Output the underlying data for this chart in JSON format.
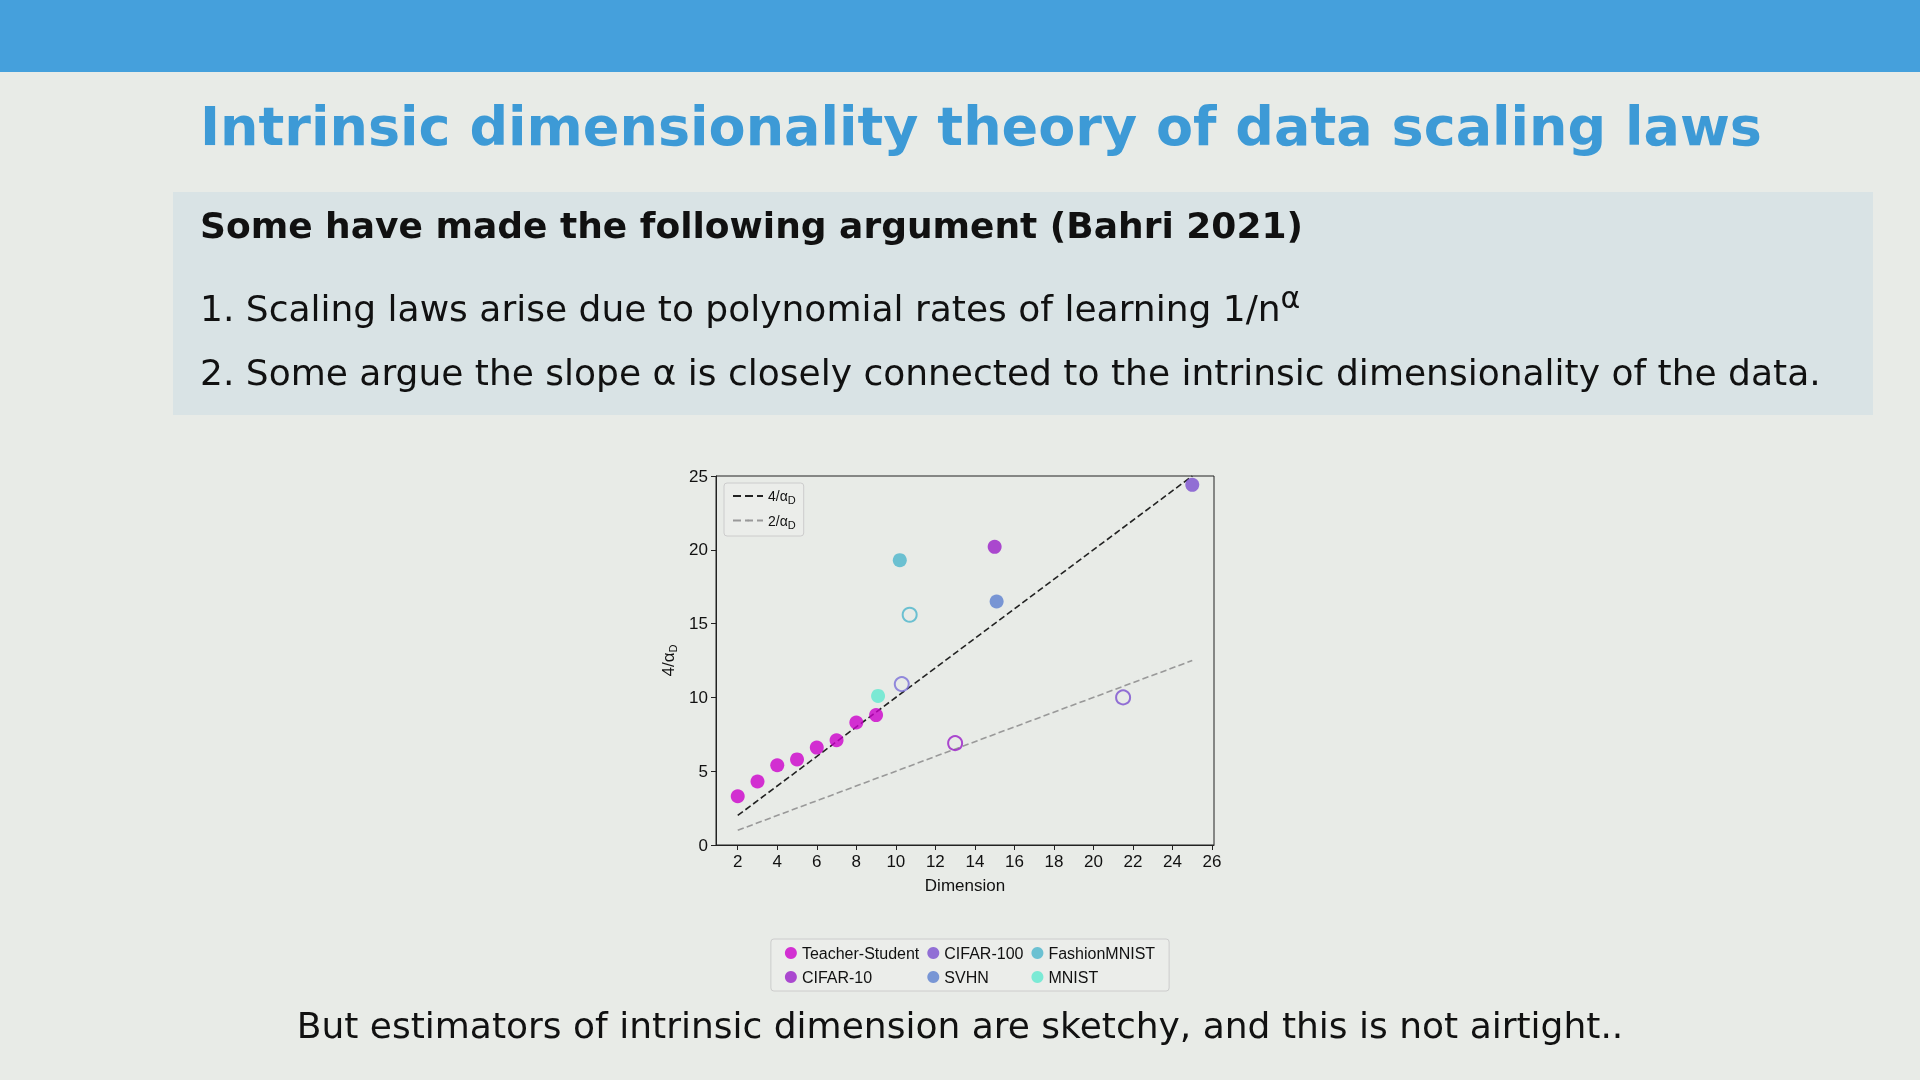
{
  "chart_data": {
    "type": "scatter",
    "title": "Intrinsic dimensionality theory of data scaling laws",
    "annotations": [
      "Some have made the following argument (Bahri 2021)",
      "1.   Scaling laws arise due to polynomial rates of learning 1/n$^{α}$",
      "2.   Some argue the slope α is closely connected to the intrinsic dimensionality of the data.",
      "But estimators of intrinsic dimension are sketchy, and this is not airtight.."
    ],
    "xlabel": "Dimension",
    "ylabel": "4/α$_{D}$",
    "xlim": [
      0.9,
      26.1
    ],
    "xticks": [
      2,
      4,
      6,
      8,
      10,
      12,
      14,
      16,
      18,
      20,
      22,
      24,
      26
    ],
    "ylim": [
      0,
      25
    ],
    "yticks": [
      0,
      5,
      10,
      15,
      20,
      25
    ],
    "grid": false,
    "legend": "bottom",
    "series": [
      {
        "name": "4/α$_{D}$",
        "type": "line",
        "line_style": "dashed",
        "color": "#222222",
        "x": [
          2,
          25
        ],
        "values": [
          2,
          25
        ]
      },
      {
        "name": "2/α$_{D}$",
        "type": "line",
        "line_style": "dashed",
        "color": "#999999",
        "x": [
          2,
          25
        ],
        "values": [
          1,
          12.5
        ]
      },
      {
        "name": "Teacher-Student",
        "marker": "circle",
        "color": "#cc00cc",
        "x": [
          2,
          3,
          4,
          5,
          6,
          7,
          8,
          9
        ],
        "values": [
          3.3,
          4.3,
          5.4,
          5.8,
          6.6,
          7.1,
          8.3,
          8.8
        ]
      },
      {
        "name": "CIFAR-10",
        "marker": "circle",
        "color": "#9a1ec8",
        "x": [
          15
        ],
        "values": [
          20.2
        ]
      },
      {
        "name": "CIFAR-100",
        "marker": "circle",
        "color": "#7b4fd0",
        "x": [
          25
        ],
        "values": [
          24.4
        ]
      },
      {
        "name": "SVHN",
        "marker": "circle",
        "color": "#5b7fd0",
        "x": [
          15.1
        ],
        "values": [
          16.5
        ]
      },
      {
        "name": "FashionMNIST",
        "marker": "circle",
        "color": "#4bb5cc",
        "x": [
          10.2
        ],
        "values": [
          19.3
        ]
      },
      {
        "name": "MNIST",
        "marker": "circle",
        "color": "#5fe8d0",
        "x": [
          9.1
        ],
        "values": [
          10.1
        ]
      },
      {
        "color": "#9a1ec8",
        "marker": "circle",
        "x": [
          13
        ],
        "values": [
          6.9
        ]
      },
      {
        "color": "#7b4fd0",
        "marker": "circle",
        "x": [
          21.5
        ],
        "values": [
          10.0
        ]
      },
      {
        "color": "#7b6fd8",
        "marker": "circle",
        "x": [
          10.3
        ],
        "values": [
          10.9
        ]
      },
      {
        "color": "#4bb5cc",
        "marker": "circle",
        "x": [
          10.7
        ],
        "values": [
          15.6
        ]
      }
    ]
  }
}
